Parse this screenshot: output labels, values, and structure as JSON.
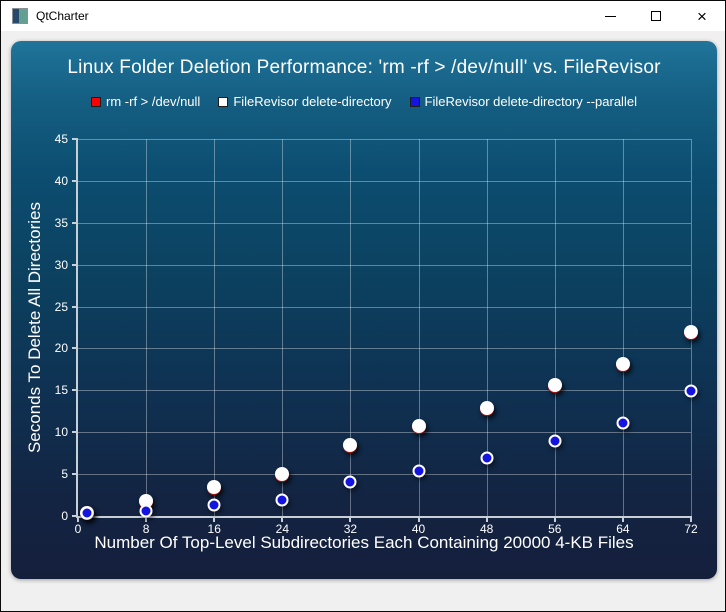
{
  "window": {
    "title": "QtCharter",
    "controls": {
      "close": "×"
    }
  },
  "chart_data": {
    "type": "scatter",
    "title": "Linux Folder Deletion Performance: 'rm -rf > /dev/null' vs. FileRevisor",
    "xlabel": "Number Of Top-Level Subdirectories Each Containing 20000 4-KB Files",
    "ylabel": "Seconds To Delete All Directories",
    "xlim": [
      0,
      72
    ],
    "ylim": [
      0,
      45
    ],
    "xticks": [
      0,
      8,
      16,
      24,
      32,
      40,
      48,
      56,
      64,
      72
    ],
    "yticks": [
      0,
      5,
      10,
      15,
      20,
      25,
      30,
      35,
      40,
      45
    ],
    "grid": true,
    "legend_position": "top",
    "x": [
      1,
      8,
      16,
      24,
      32,
      40,
      48,
      56,
      64,
      72
    ],
    "series": [
      {
        "name": "rm -rf > /dev/null",
        "values": [
          0.3,
          1.7,
          3.3,
          4.9,
          8.3,
          10.6,
          12.8,
          15.5,
          18.0,
          21.9
        ],
        "marker": {
          "fill": "#ff1a1a",
          "border": "#ffffff",
          "border_width": 0,
          "size": 14
        },
        "swatch": "#ff0000"
      },
      {
        "name": "FileRevisor delete-directory",
        "values": [
          0.35,
          1.8,
          3.45,
          5.0,
          8.45,
          10.75,
          12.9,
          15.65,
          18.15,
          22.0
        ],
        "marker": {
          "fill": "#ffffff",
          "border": "#ffffff",
          "border_width": 0,
          "size": 14
        },
        "swatch": "#ffffff"
      },
      {
        "name": "FileRevisor delete-directory --parallel",
        "values": [
          0.3,
          0.6,
          1.3,
          1.9,
          4.0,
          5.4,
          6.9,
          9.0,
          11.1,
          14.9
        ],
        "marker": {
          "fill": "#1414e0",
          "border": "#ffffff",
          "border_width": 2,
          "size": 9
        },
        "swatch": "#1414e0"
      }
    ]
  },
  "theme": {
    "background_top": "#20749a",
    "background_bottom": "#141f3c",
    "text_color": "#ffffff",
    "gridline_color": "rgba(255,255,255,0.35)",
    "axis_color": "#c6d0d6"
  }
}
